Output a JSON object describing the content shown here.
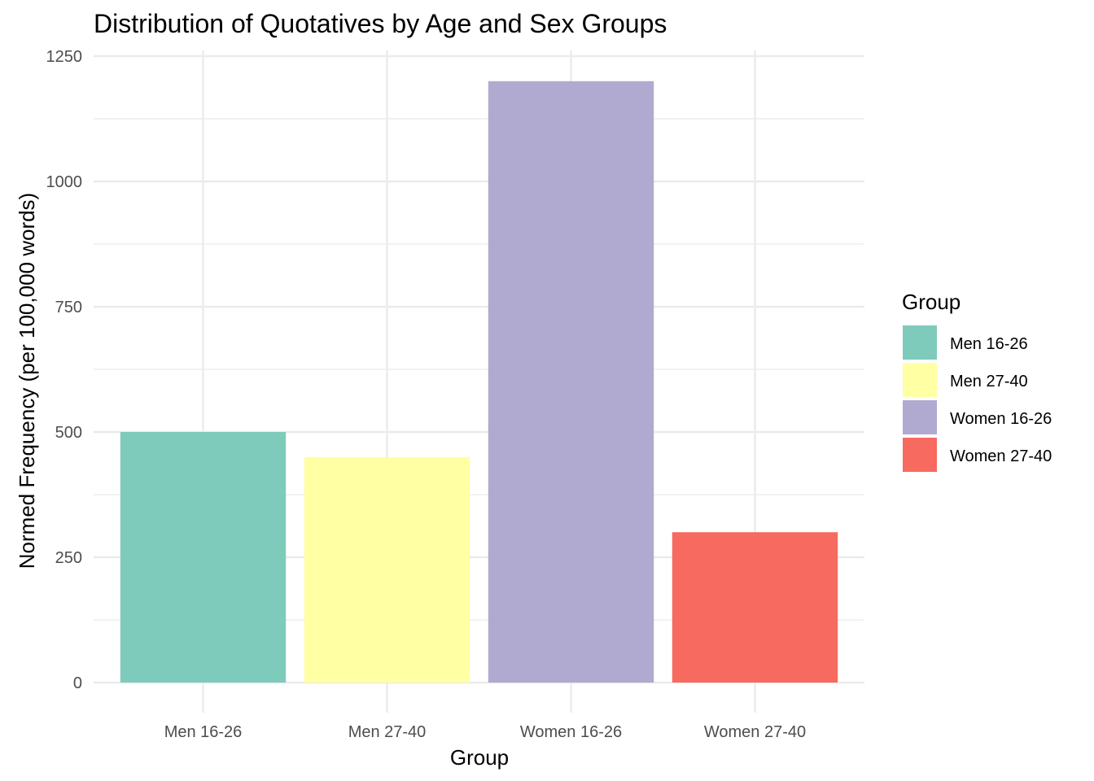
{
  "chart_data": {
    "type": "bar",
    "title": "Distribution of Quotatives by Age and Sex Groups",
    "xlabel": "Group",
    "ylabel": "Normed Frequency (per 100,000 words)",
    "categories": [
      "Men 16-26",
      "Men 27-40",
      "Women 16-26",
      "Women 27-40"
    ],
    "values": [
      500,
      450,
      1200,
      300
    ],
    "colors": [
      "#7fcbbb",
      "#ffffa3",
      "#b0aad0",
      "#f66a5f"
    ],
    "ylim": [
      0,
      1250
    ],
    "yticks": [
      0,
      250,
      500,
      750,
      1000,
      1250
    ],
    "grid": true,
    "legend": {
      "title": "Group",
      "position": "right",
      "entries": [
        "Men 16-26",
        "Men 27-40",
        "Women 16-26",
        "Women 27-40"
      ]
    }
  }
}
